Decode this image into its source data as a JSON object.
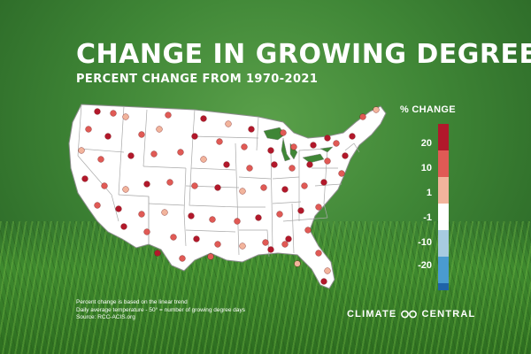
{
  "title": "CHANGE IN GROWING DEGREE DAYS",
  "subtitle": "PERCENT CHANGE FROM 1970-2021",
  "legend": {
    "title": "% CHANGE",
    "labels": [
      "20",
      "10",
      "1",
      "-1",
      "-10",
      "-20"
    ],
    "colors": [
      "#b2182b",
      "#e05a55",
      "#f2b49c",
      "#ffffff",
      "#a7cbe0",
      "#4a9bd0",
      "#1f63a8"
    ]
  },
  "notes": [
    "Percent change is based on the linear trend",
    "Daily average temperature - 50° = number of growing degree days",
    "Source: RCC-ACIS.org"
  ],
  "brand": {
    "left": "CLIMATE",
    "right": "CENTRAL"
  },
  "colors": {
    "state_fill": "#ffffff",
    "state_border": "#9a9a9a",
    "dot_border": "#7a1a1a"
  }
}
